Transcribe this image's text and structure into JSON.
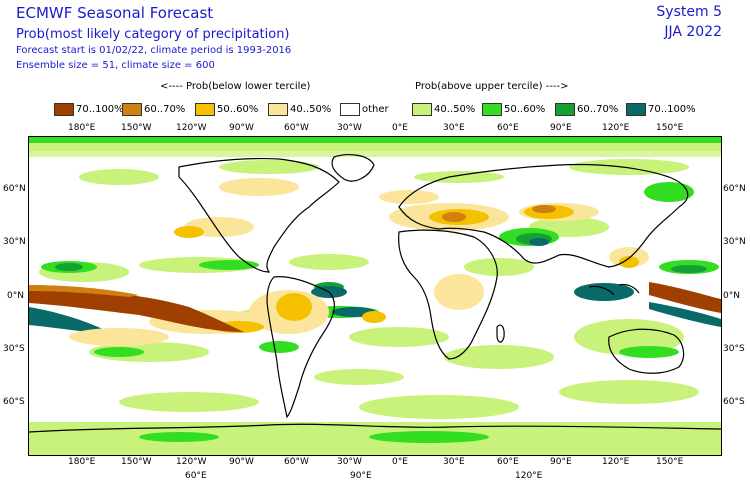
{
  "header": {
    "title": "ECMWF Seasonal Forecast",
    "subtitle": "Prob(most likely category of precipitation)",
    "forecast_start": "Forecast start is 01/02/22, climate period is 1993-2016",
    "ensemble": "Ensemble size = 51, climate size = 600",
    "system": "System 5",
    "season": "JJA 2022"
  },
  "legend": {
    "below_label": "<---- Prob(below lower tercile)",
    "above_label": "Prob(above upper tercile) ---->",
    "items": [
      {
        "label": "70..100%",
        "color": "#a04000"
      },
      {
        "label": "60..70%",
        "color": "#d08010"
      },
      {
        "label": "50..60%",
        "color": "#f5c000"
      },
      {
        "label": "40..50%",
        "color": "#fbe59a"
      },
      {
        "label": "other",
        "color": "#ffffff"
      },
      {
        "label": "40..50%",
        "color": "#c8f27a"
      },
      {
        "label": "50..60%",
        "color": "#33dd22"
      },
      {
        "label": "60..70%",
        "color": "#15a035"
      },
      {
        "label": "70..100%",
        "color": "#0a6a6a"
      }
    ]
  },
  "axes": {
    "top_lon": [
      "180°E",
      "150°W",
      "120°W",
      "90°W",
      "60°W",
      "30°W",
      "0°E",
      "30°E",
      "60°E",
      "90°E",
      "120°E",
      "150°E"
    ],
    "bottom_lon": [
      "180°E",
      "150°W",
      "120°W",
      "90°W",
      "60°W",
      "30°W",
      "0°E",
      "30°E",
      "60°E",
      "90°E",
      "120°E",
      "150°E"
    ],
    "bottom_extra": [
      "60°E",
      "90°E",
      "120°E"
    ],
    "lat_left": [
      "60°N",
      "30°N",
      "0°N",
      "30°S",
      "60°S"
    ],
    "lat_right": [
      "60°N",
      "30°N",
      "0°N",
      "30°S",
      "60°S"
    ]
  }
}
